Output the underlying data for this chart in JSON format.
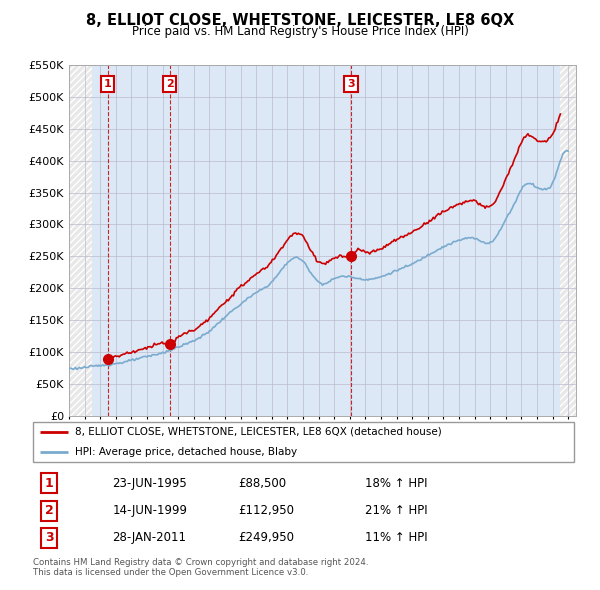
{
  "title": "8, ELLIOT CLOSE, WHETSTONE, LEICESTER, LE8 6QX",
  "subtitle": "Price paid vs. HM Land Registry's House Price Index (HPI)",
  "ylim": [
    0,
    550000
  ],
  "xlim_start": 1993.0,
  "xlim_end": 2025.5,
  "yticks": [
    0,
    50000,
    100000,
    150000,
    200000,
    250000,
    300000,
    350000,
    400000,
    450000,
    500000,
    550000
  ],
  "ytick_labels": [
    "£0",
    "£50K",
    "£100K",
    "£150K",
    "£200K",
    "£250K",
    "£300K",
    "£350K",
    "£400K",
    "£450K",
    "£500K",
    "£550K"
  ],
  "sale_dates_year": [
    1995.474,
    1999.451,
    2011.074
  ],
  "sale_prices": [
    88500,
    112950,
    249950
  ],
  "sale_labels": [
    "1",
    "2",
    "3"
  ],
  "legend_line1": "8, ELLIOT CLOSE, WHETSTONE, LEICESTER, LE8 6QX (detached house)",
  "legend_line2": "HPI: Average price, detached house, Blaby",
  "table_data": [
    [
      "1",
      "23-JUN-1995",
      "£88,500",
      "18% ↑ HPI"
    ],
    [
      "2",
      "14-JUN-1999",
      "£112,950",
      "21% ↑ HPI"
    ],
    [
      "3",
      "28-JAN-2011",
      "£249,950",
      "11% ↑ HPI"
    ]
  ],
  "footer": "Contains HM Land Registry data © Crown copyright and database right 2024.\nThis data is licensed under the Open Government Licence v3.0.",
  "red_color": "#cc0000",
  "blue_color": "#7aabcf",
  "hatch_bg": "#e8e8e8",
  "grid_color": "#bbbbcc",
  "bg_color": "#dce8f5",
  "data_start_year": 1994.5,
  "data_end_year": 2024.5
}
